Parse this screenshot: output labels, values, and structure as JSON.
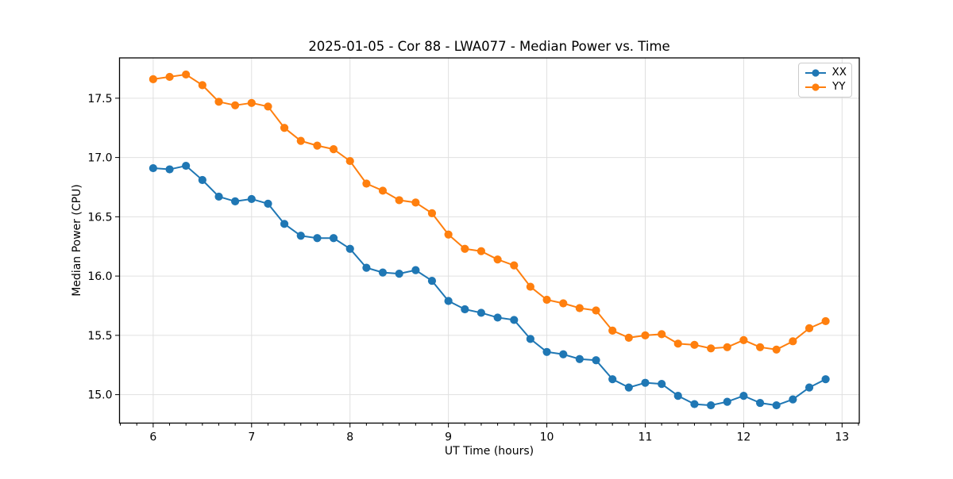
{
  "chart_data": {
    "type": "line",
    "title": "2025-01-05 - Cor 88 - LWA077 - Median Power vs. Time",
    "xlabel": "UT Time (hours)",
    "ylabel": "Median Power (CPU)",
    "xlim": [
      5.658,
      13.175
    ],
    "ylim": [
      14.76,
      17.84
    ],
    "x_ticks": [
      6,
      7,
      8,
      9,
      10,
      11,
      12,
      13
    ],
    "y_ticks": [
      15.0,
      15.5,
      16.0,
      16.5,
      17.0,
      17.5
    ],
    "x_minor_step": 0.1666667,
    "grid": "major",
    "grid_color": "#e0e0e0",
    "legend_position": "upper right",
    "x": [
      6.0,
      6.167,
      6.333,
      6.5,
      6.667,
      6.833,
      7.0,
      7.167,
      7.333,
      7.5,
      7.667,
      7.833,
      8.0,
      8.167,
      8.333,
      8.5,
      8.667,
      8.833,
      9.0,
      9.167,
      9.333,
      9.5,
      9.667,
      9.833,
      10.0,
      10.167,
      10.333,
      10.5,
      10.667,
      10.833,
      11.0,
      11.167,
      11.333,
      11.5,
      11.667,
      11.833,
      12.0,
      12.167,
      12.333,
      12.5,
      12.667,
      12.833
    ],
    "series": [
      {
        "name": "XX",
        "color": "#1f77b4",
        "values": [
          16.91,
          16.9,
          16.93,
          16.81,
          16.67,
          16.63,
          16.65,
          16.61,
          16.44,
          16.34,
          16.32,
          16.32,
          16.23,
          16.07,
          16.03,
          16.02,
          16.05,
          15.96,
          15.79,
          15.72,
          15.69,
          15.65,
          15.63,
          15.47,
          15.36,
          15.34,
          15.3,
          15.29,
          15.13,
          15.06,
          15.1,
          15.09,
          14.99,
          14.92,
          14.91,
          14.94,
          14.99,
          14.93,
          14.91,
          14.96,
          15.06,
          15.13
        ]
      },
      {
        "name": "YY",
        "color": "#ff7f0e",
        "values": [
          17.66,
          17.68,
          17.7,
          17.61,
          17.47,
          17.44,
          17.46,
          17.43,
          17.25,
          17.14,
          17.1,
          17.07,
          16.97,
          16.78,
          16.72,
          16.64,
          16.62,
          16.53,
          16.35,
          16.23,
          16.21,
          16.14,
          16.09,
          15.91,
          15.8,
          15.77,
          15.73,
          15.71,
          15.54,
          15.48,
          15.5,
          15.51,
          15.43,
          15.42,
          15.39,
          15.4,
          15.46,
          15.4,
          15.38,
          15.45,
          15.56,
          15.62
        ]
      }
    ]
  }
}
